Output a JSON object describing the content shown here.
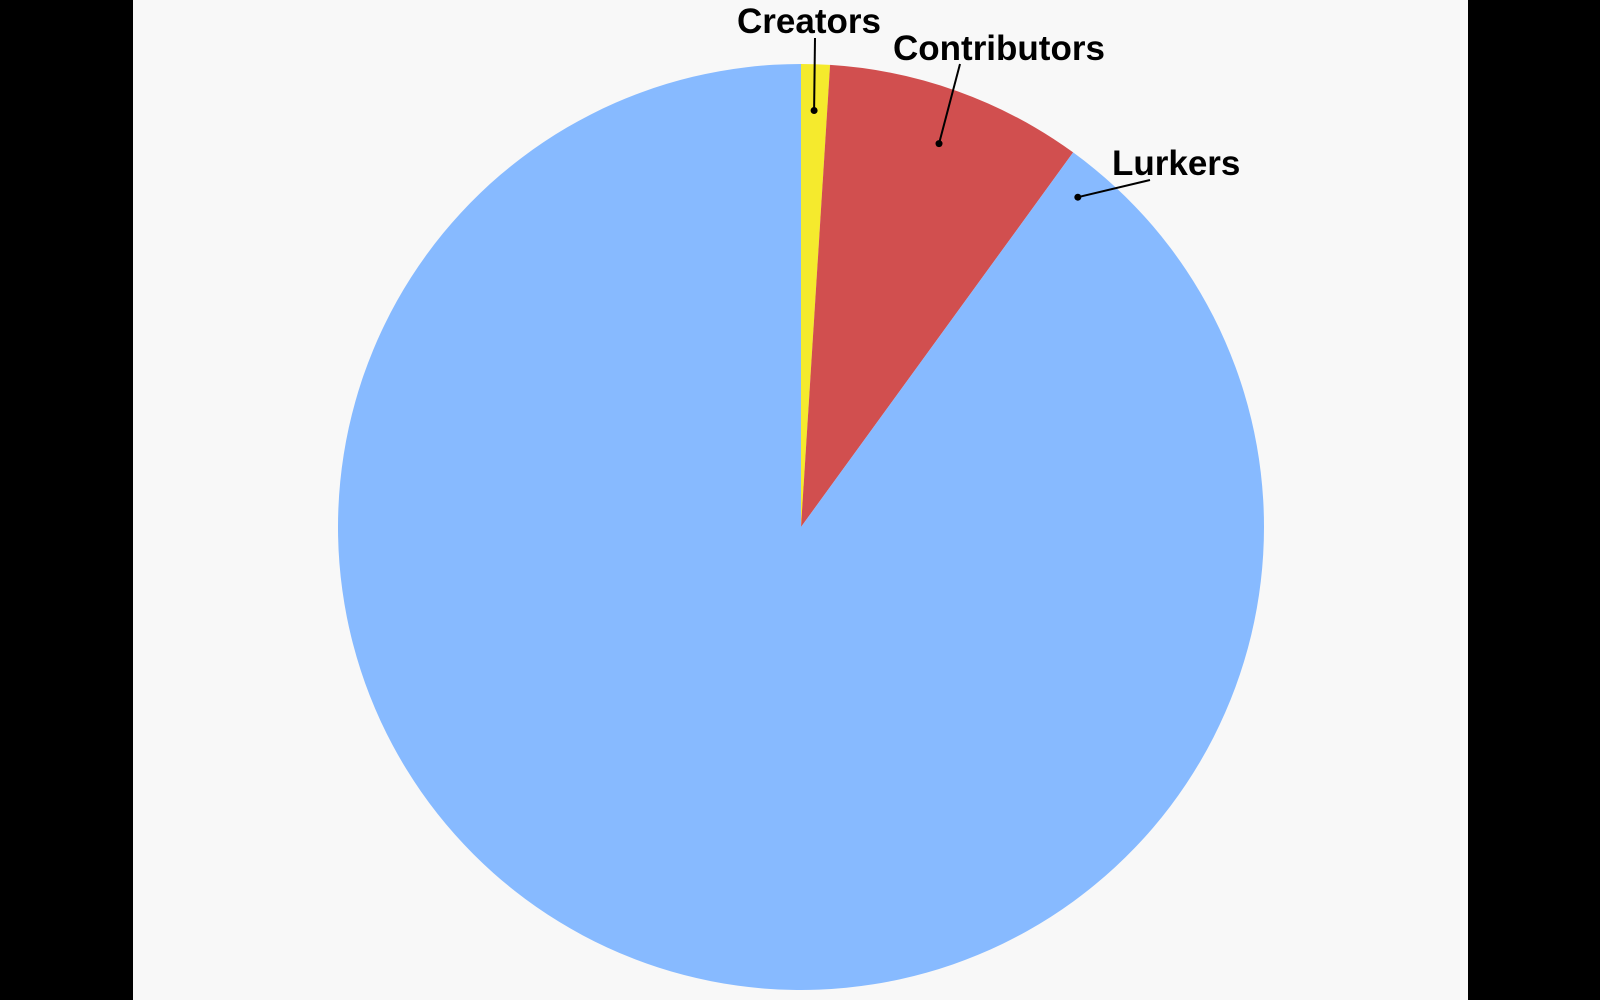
{
  "chart_data": {
    "type": "pie",
    "start": "12 o'clock, clockwise",
    "legend": "none",
    "slices": [
      {
        "label": "Creators",
        "value": 1,
        "color": "#f5ea2d"
      },
      {
        "label": "Contributors",
        "value": 9,
        "color": "#d14f4f"
      },
      {
        "label": "Lurkers",
        "value": 90,
        "color": "#87baff"
      }
    ]
  },
  "colors": {
    "page_background": "#f8f8f8",
    "side_bars": "#000000"
  }
}
